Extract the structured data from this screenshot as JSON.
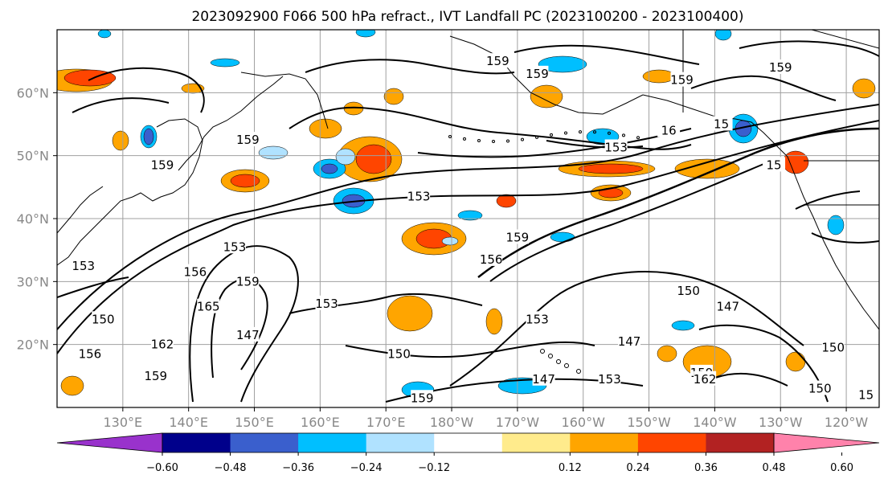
{
  "title": "2023092900 F066 500 hPa refract., IVT Landfall PC (2023100200 - 2023100400)",
  "lat_labels": [
    "60°N",
    "50°N",
    "40°N",
    "30°N",
    "20°N"
  ],
  "lon_labels": [
    "130°E",
    "140°E",
    "150°E",
    "160°E",
    "170°E",
    "180°W",
    "170°W",
    "160°W",
    "150°W",
    "140°W",
    "130°W",
    "120°W"
  ],
  "colorbar": {
    "colors": [
      "#9932cc",
      "#00008b",
      "#3a5fcd",
      "#00bfff",
      "#b0e2ff",
      "#ffffff",
      "#ffeb8c",
      "#ffa500",
      "#ff4500",
      "#b22222",
      "#ff82ab"
    ],
    "tick_labels": [
      "-0.60",
      "-0.48",
      "-0.36",
      "-0.24",
      "-0.12",
      "0.12",
      "0.24",
      "0.36",
      "0.48",
      "0.60"
    ]
  },
  "contour_labels": [
    {
      "text": "159",
      "lat": 52.5,
      "lon": 149
    },
    {
      "text": "159",
      "lat": 48.5,
      "lon": 136
    },
    {
      "text": "153",
      "lat": 43.5,
      "lon": 175
    },
    {
      "text": "153",
      "lat": 51.3,
      "lon": -155
    },
    {
      "text": "159",
      "lat": 65,
      "lon": -173
    },
    {
      "text": "159",
      "lat": 63,
      "lon": -167
    },
    {
      "text": "159",
      "lat": 62,
      "lon": -145
    },
    {
      "text": "159",
      "lat": 64,
      "lon": -130
    },
    {
      "text": "159",
      "lat": 37,
      "lon": -170
    },
    {
      "text": "156",
      "lat": 33.5,
      "lon": -174
    },
    {
      "text": "153",
      "lat": 24,
      "lon": -167
    },
    {
      "text": "150",
      "lat": 28.5,
      "lon": -144
    },
    {
      "text": "147",
      "lat": 26,
      "lon": -138
    },
    {
      "text": "147",
      "lat": 20.5,
      "lon": -153
    },
    {
      "text": "147",
      "lat": 14.5,
      "lon": -166
    },
    {
      "text": "153",
      "lat": 14.5,
      "lon": -156
    },
    {
      "text": "159",
      "lat": 15.5,
      "lon": -142
    },
    {
      "text": "162",
      "lat": 14.5,
      "lon": -141.5
    },
    {
      "text": "150",
      "lat": 19.5,
      "lon": -122
    },
    {
      "text": "150",
      "lat": 13,
      "lon": -124
    },
    {
      "text": "153",
      "lat": 32.5,
      "lon": 124
    },
    {
      "text": "150",
      "lat": 24,
      "lon": 127
    },
    {
      "text": "156",
      "lat": 18.5,
      "lon": 125
    },
    {
      "text": "156",
      "lat": 31.5,
      "lon": 141
    },
    {
      "text": "153",
      "lat": 35.5,
      "lon": 147
    },
    {
      "text": "159",
      "lat": 30,
      "lon": 149
    },
    {
      "text": "165",
      "lat": 26,
      "lon": 143
    },
    {
      "text": "162",
      "lat": 20,
      "lon": 136
    },
    {
      "text": "159",
      "lat": 15,
      "lon": 135
    },
    {
      "text": "147",
      "lat": 21.5,
      "lon": 149
    },
    {
      "text": "153",
      "lat": 26.5,
      "lon": 161
    },
    {
      "text": "150",
      "lat": 18.5,
      "lon": 172
    },
    {
      "text": "159",
      "lat": 11.5,
      "lon": 175.5
    },
    {
      "text": "16",
      "lat": 54,
      "lon": -147
    },
    {
      "text": "15",
      "lat": 48.5,
      "lon": -131
    },
    {
      "text": "15",
      "lat": 55,
      "lon": -139
    },
    {
      "text": "15",
      "lat": 12,
      "lon": -117
    }
  ]
}
